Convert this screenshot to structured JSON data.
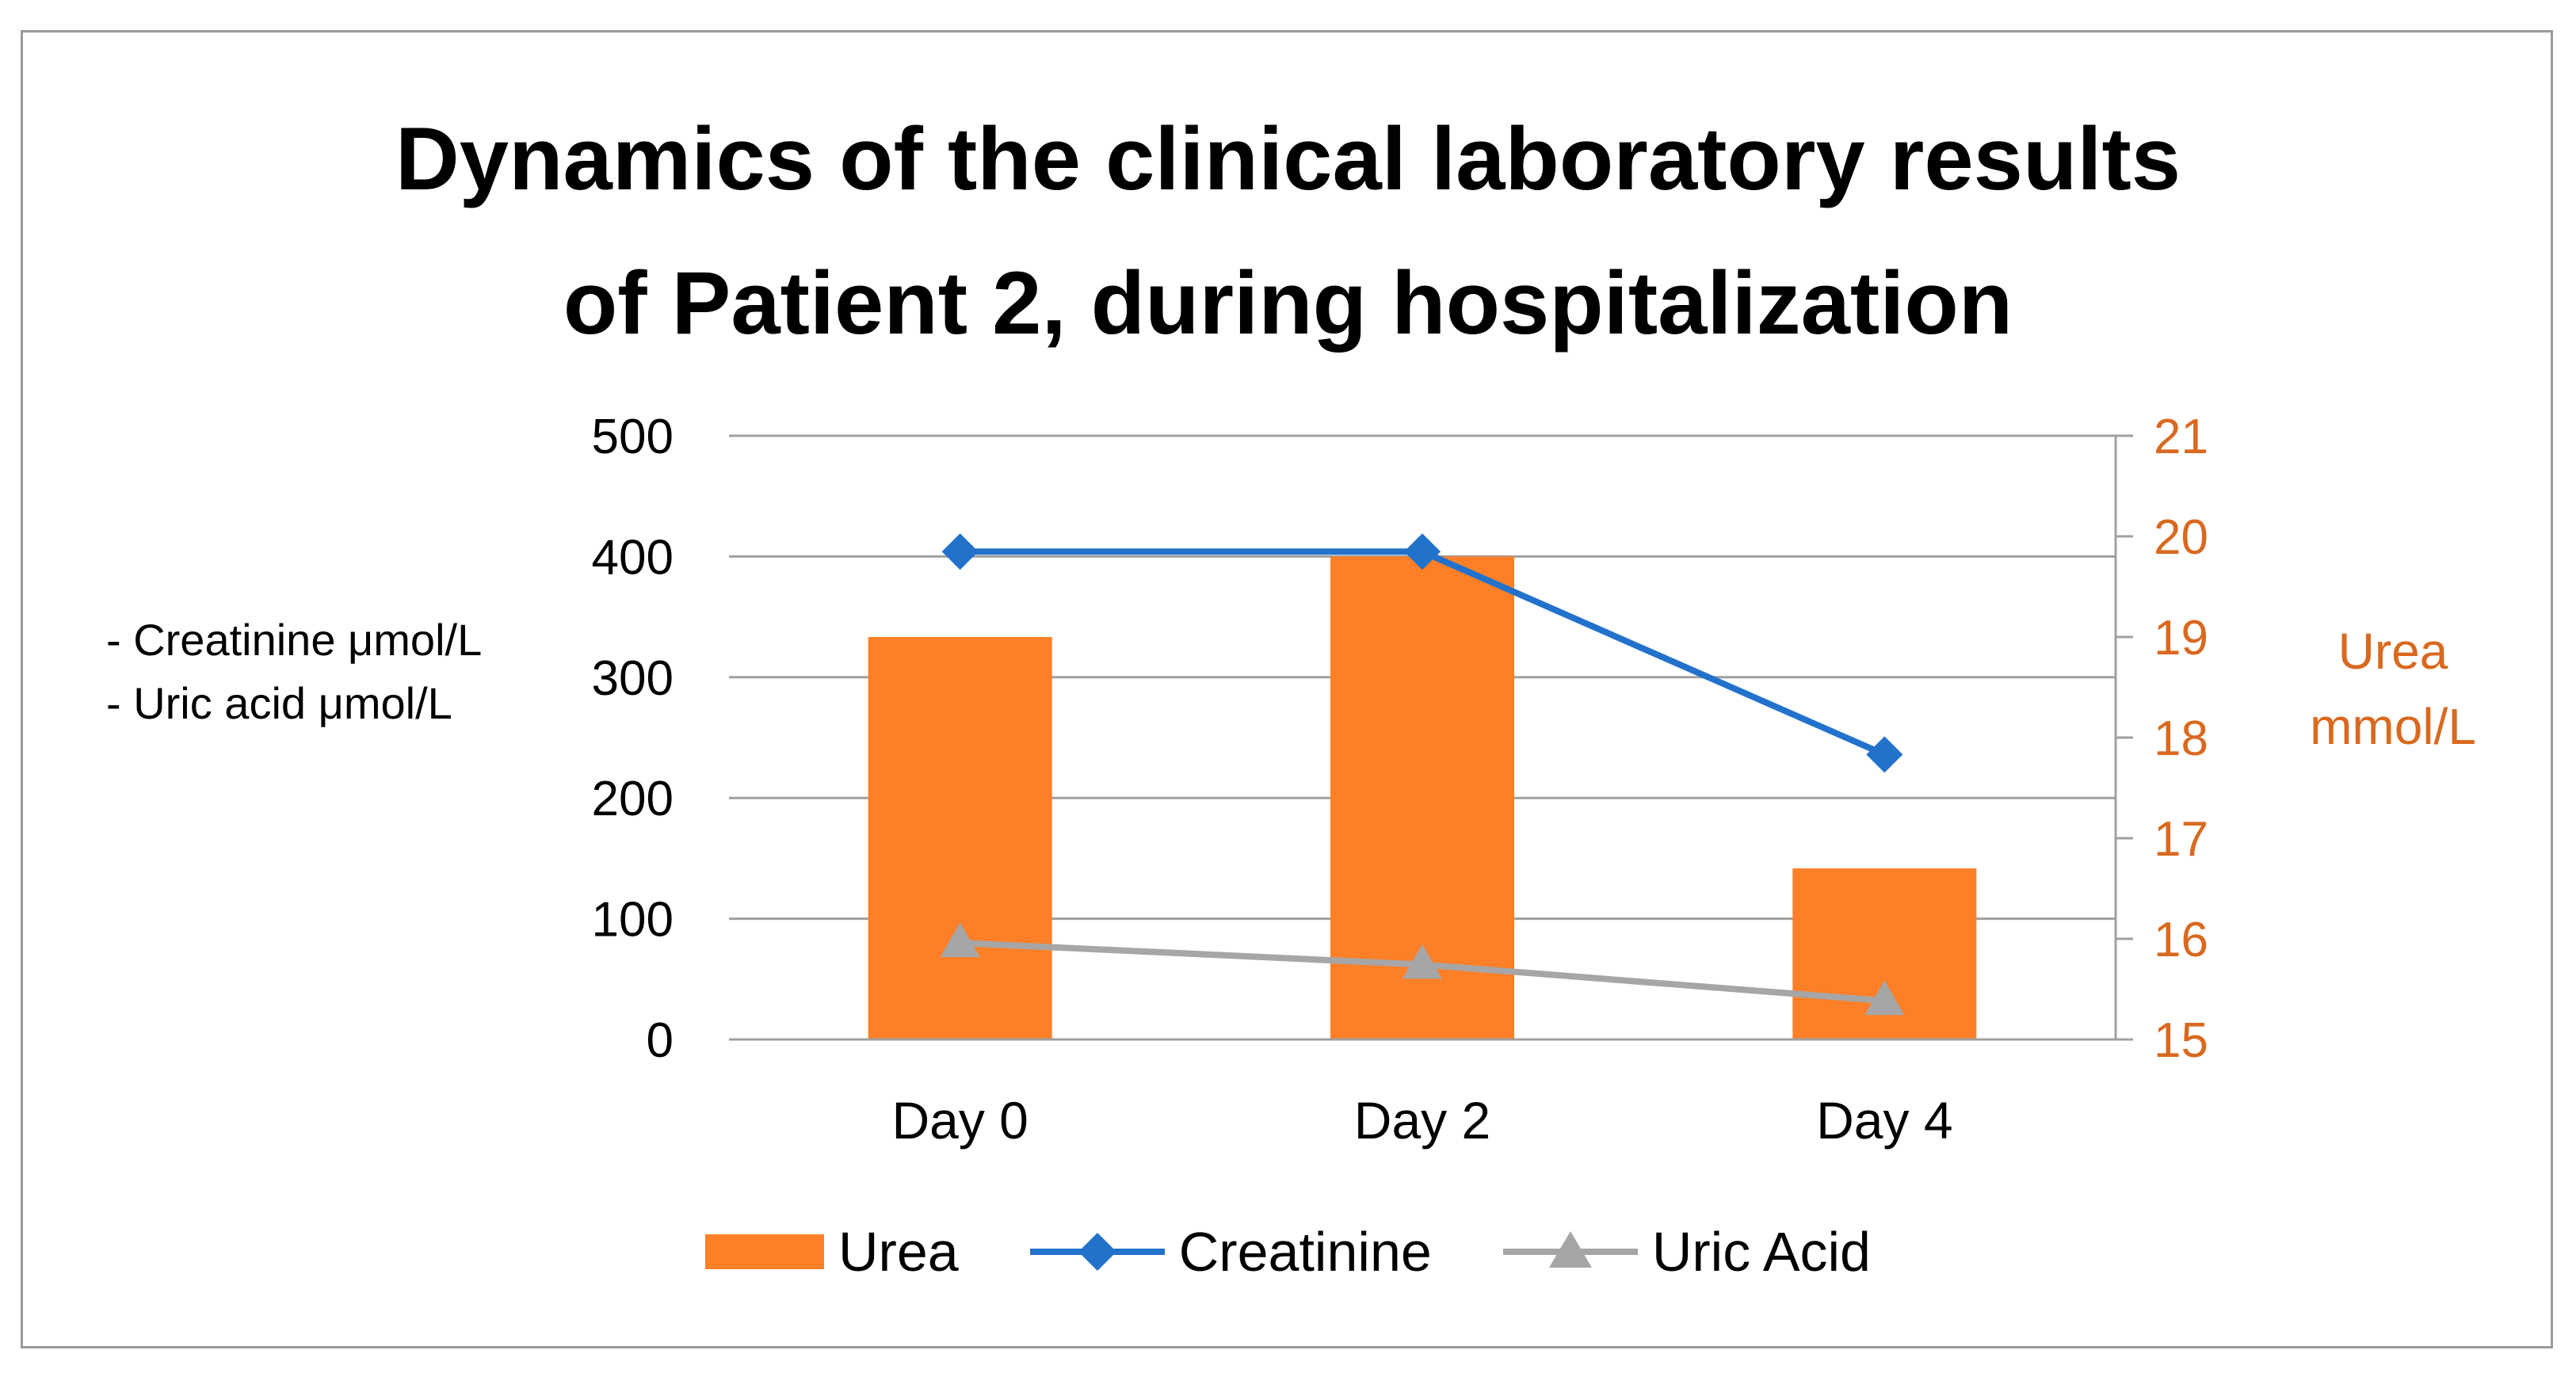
{
  "chart_data": {
    "type": "bar",
    "title_lines": [
      "Dynamics of the clinical laboratory results",
      "of Patient 2, during hospitalization"
    ],
    "categories": [
      "Day 0",
      "Day 2",
      "Day 4"
    ],
    "left_axis": {
      "labels": [
        "- Creatinine μmol/L",
        "- Uric acid μmol/L"
      ],
      "ylim": [
        0,
        500
      ],
      "ticks": [
        0,
        100,
        200,
        300,
        400,
        500
      ],
      "tick_labels": [
        "0",
        "100",
        "200",
        "300",
        "400",
        "500"
      ]
    },
    "right_axis": {
      "label_lines": [
        "Urea",
        "mmol/L"
      ],
      "ylim": [
        15,
        21
      ],
      "ticks": [
        15,
        16,
        17,
        18,
        19,
        20,
        21
      ],
      "tick_labels": [
        "15",
        "16",
        "17",
        "18",
        "19",
        "20",
        "21"
      ],
      "color": "#d9691f"
    },
    "series": [
      {
        "name": "Urea",
        "type": "bar",
        "axis": "right",
        "values": [
          19.0,
          19.8,
          16.7
        ],
        "color": "#fd7f27"
      },
      {
        "name": "Creatinine",
        "type": "line",
        "axis": "left",
        "marker": "diamond",
        "values": [
          404,
          404,
          236
        ],
        "color": "#2272cc"
      },
      {
        "name": "Uric Acid",
        "type": "line",
        "axis": "left",
        "marker": "triangle",
        "values": [
          80,
          62,
          32
        ],
        "color": "#a6a6a6"
      }
    ],
    "grid": true,
    "legend_position": "bottom"
  }
}
